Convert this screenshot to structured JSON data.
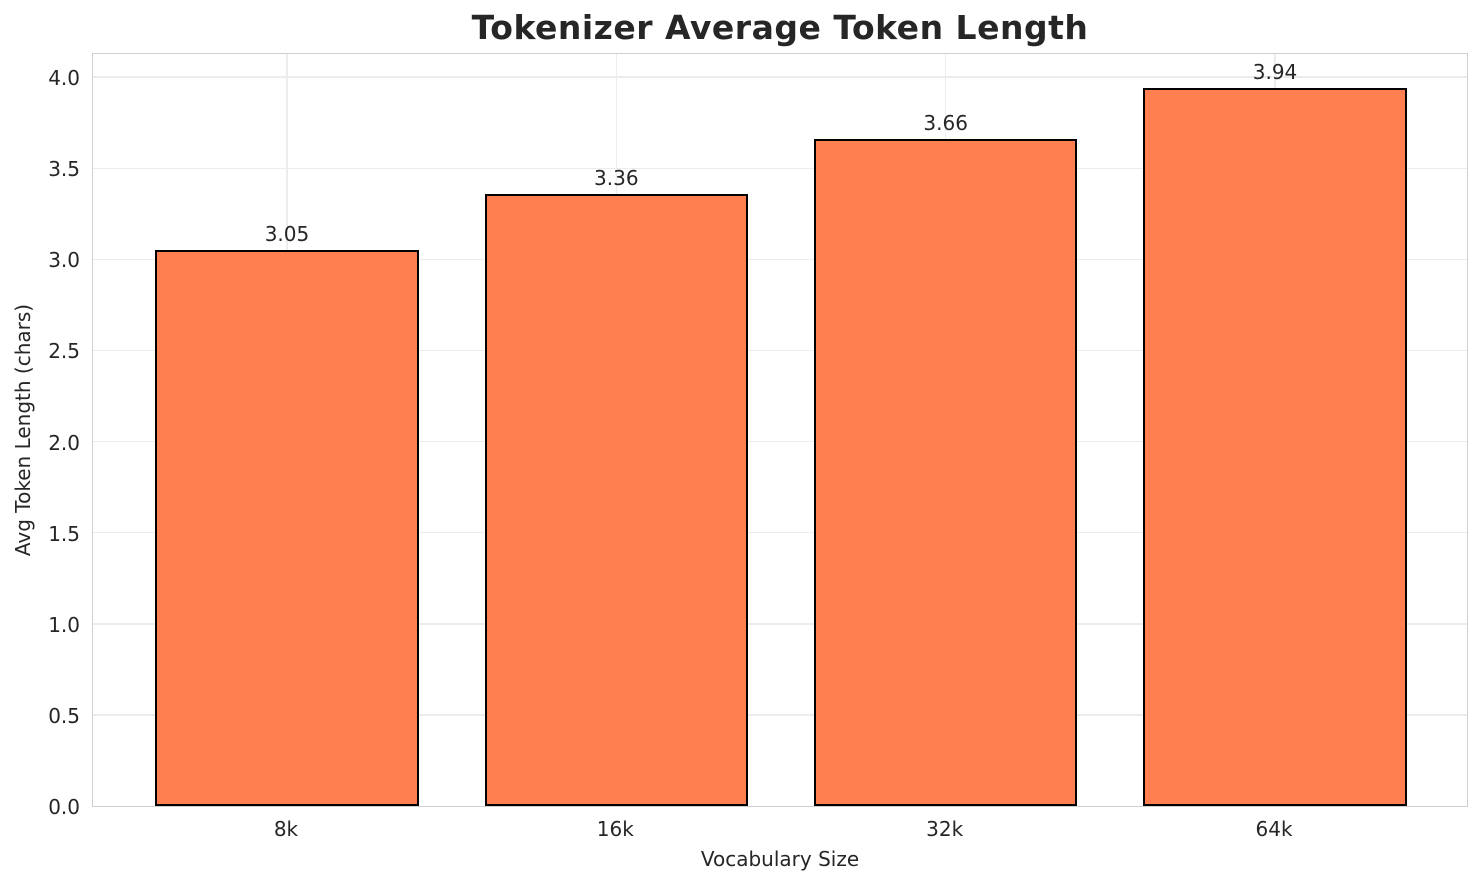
{
  "chart_data": {
    "type": "bar",
    "title": "Tokenizer Average Token Length",
    "xlabel": "Vocabulary Size",
    "ylabel": "Avg Token Length (chars)",
    "categories": [
      "8k",
      "16k",
      "32k",
      "64k"
    ],
    "values": [
      3.05,
      3.36,
      3.66,
      3.94
    ],
    "bar_labels": [
      "3.05",
      "3.36",
      "3.66",
      "3.94"
    ],
    "y_ticks": [
      0.0,
      0.5,
      1.0,
      1.5,
      2.0,
      2.5,
      3.0,
      3.5,
      4.0
    ],
    "y_tick_labels": [
      "0.0",
      "0.5",
      "1.0",
      "1.5",
      "2.0",
      "2.5",
      "3.0",
      "3.5",
      "4.0"
    ],
    "ylim": [
      0,
      4.138
    ],
    "xlim": [
      -0.589,
      3.589
    ],
    "bar_width": 0.8,
    "grid": true,
    "legend": "none",
    "colors": {
      "bar_fill": "#ff7f50",
      "bar_edge": "#000000",
      "grid": "#ececec",
      "spine": "#cfcfcf",
      "text": "#262626",
      "background": "#ffffff"
    }
  }
}
